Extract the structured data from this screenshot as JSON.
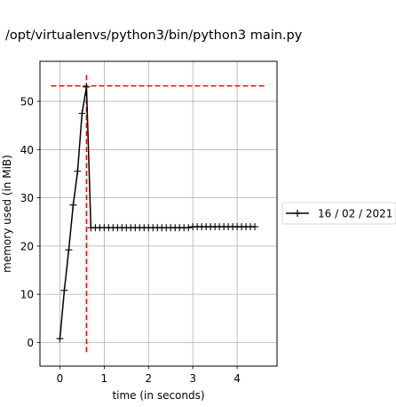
{
  "chart_data": {
    "type": "line",
    "title": "/opt/virtualenvs/python3/bin/python3 main.py",
    "xlabel": "time (in seconds)",
    "ylabel": "memory used (in MiB)",
    "xlim": [
      -0.45,
      4.9
    ],
    "ylim": [
      -4.9,
      58.3
    ],
    "xticks": [
      0,
      1,
      2,
      3,
      4
    ],
    "yticks": [
      0,
      10,
      20,
      30,
      40,
      50
    ],
    "grid": true,
    "legend_position": "right",
    "series": [
      {
        "name": "16 / 02 / 2021",
        "color": "#000000",
        "marker": "plus",
        "x": [
          0,
          0.1,
          0.2,
          0.3,
          0.4,
          0.5,
          0.6,
          0.7,
          0.8,
          0.9,
          1.0,
          1.1,
          1.2,
          1.3,
          1.4,
          1.5,
          1.6,
          1.7,
          1.8,
          1.9,
          2.0,
          2.1,
          2.2,
          2.3,
          2.4,
          2.5,
          2.6,
          2.7,
          2.8,
          2.9,
          3.0,
          3.1,
          3.2,
          3.3,
          3.4,
          3.5,
          3.6,
          3.7,
          3.8,
          3.9,
          4.0,
          4.1,
          4.2,
          4.3,
          4.4
        ],
        "y": [
          0.8,
          10.8,
          19.2,
          28.5,
          35.5,
          47.5,
          53.0,
          23.8,
          23.8,
          23.8,
          23.8,
          23.8,
          23.8,
          23.8,
          23.8,
          23.8,
          23.8,
          23.8,
          23.8,
          23.8,
          23.8,
          23.8,
          23.8,
          23.8,
          23.8,
          23.8,
          23.8,
          23.8,
          23.8,
          23.8,
          24.0,
          24.0,
          24.0,
          24.0,
          24.0,
          24.0,
          24.0,
          24.0,
          24.0,
          24.0,
          24.0,
          24.0,
          24.0,
          24.0,
          24.0
        ]
      }
    ],
    "annotations": [
      {
        "type": "hline",
        "value": 53.2,
        "color": "#ff0000",
        "style": "dashed"
      },
      {
        "type": "vline",
        "value": 0.6,
        "color": "#ff0000",
        "style": "dashed"
      }
    ]
  }
}
